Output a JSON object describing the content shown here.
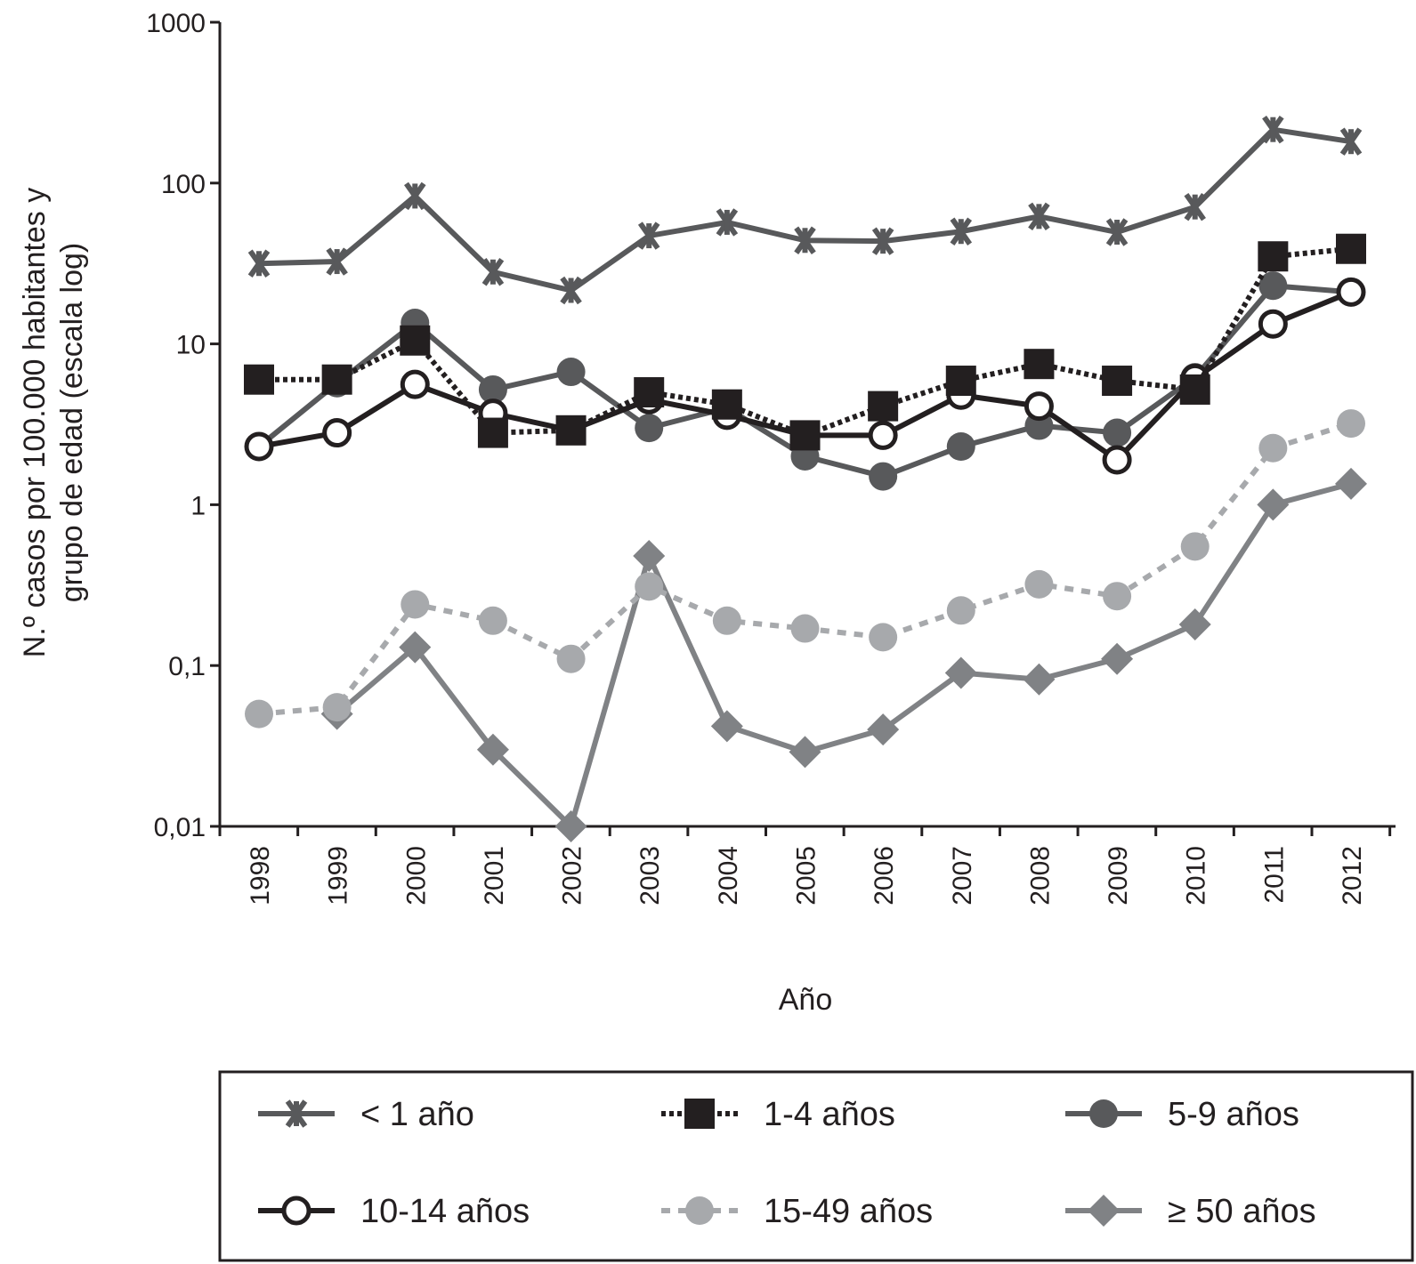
{
  "chart_data": {
    "type": "line",
    "title": "",
    "xlabel": "Año",
    "ylabel_line1": "N.º casos por 100.000 habitantes y",
    "ylabel_line2": "grupo de edad (escala log)",
    "yscale": "log",
    "ylim": [
      0.01,
      1000
    ],
    "yticks": [
      {
        "value": 1000,
        "label": "1000"
      },
      {
        "value": 100,
        "label": "100"
      },
      {
        "value": 10,
        "label": "10"
      },
      {
        "value": 1,
        "label": "1"
      },
      {
        "value": 0.1,
        "label": "0,1"
      },
      {
        "value": 0.01,
        "label": "0,01"
      }
    ],
    "x": [
      "1998",
      "1999",
      "2000",
      "2001",
      "2002",
      "2003",
      "2004",
      "2005",
      "2006",
      "2007",
      "2008",
      "2009",
      "2010",
      "2011",
      "2012"
    ],
    "grid": false,
    "legend_position": "bottom",
    "series": [
      {
        "name": "< 1 año",
        "marker": "asterisk",
        "line": "solid",
        "color": "#58595b",
        "marker_color": "#58595b",
        "values": [
          31.6,
          32.5,
          83,
          28,
          21.5,
          47,
          57,
          44,
          43.5,
          50,
          62,
          49.5,
          71,
          215,
          181
        ]
      },
      {
        "name": "1-4 años",
        "marker": "square",
        "line": "dotted",
        "color": "#231f20",
        "marker_color": "#231f20",
        "values": [
          6,
          6,
          10.5,
          2.8,
          2.9,
          5,
          4.2,
          2.7,
          4.1,
          5.9,
          7.5,
          5.9,
          5.2,
          35,
          39
        ]
      },
      {
        "name": "5-9 años",
        "marker": "circle",
        "line": "solid",
        "color": "#58595b",
        "marker_color": "#58595b",
        "values": [
          2.3,
          5.7,
          13.5,
          5.2,
          6.7,
          3.0,
          4.0,
          2.0,
          1.5,
          2.3,
          3.1,
          2.8,
          6.2,
          23,
          21
        ]
      },
      {
        "name": "10-14 años",
        "marker": "open-circle",
        "line": "solid",
        "color": "#231f20",
        "marker_color": "#ffffff",
        "values": [
          2.3,
          2.8,
          5.6,
          3.7,
          2.9,
          4.5,
          3.6,
          2.7,
          2.7,
          4.8,
          4.1,
          1.9,
          6.1,
          13.3,
          21
        ]
      },
      {
        "name": "15-49 años",
        "marker": "circle",
        "line": "dashed",
        "color": "#a7a9ac",
        "marker_color": "#a7a9ac",
        "values": [
          0.05,
          0.055,
          0.24,
          0.19,
          0.11,
          0.31,
          0.19,
          0.17,
          0.15,
          0.22,
          0.32,
          0.27,
          0.55,
          2.25,
          3.2
        ]
      },
      {
        "name": "≥ 50 años",
        "marker": "diamond",
        "line": "solid",
        "color": "#808285",
        "marker_color": "#808285",
        "values": [
          null,
          0.05,
          0.13,
          0.03,
          0.01,
          0.48,
          0.042,
          0.029,
          0.04,
          0.09,
          0.082,
          0.11,
          0.18,
          1.0,
          1.35
        ]
      }
    ]
  }
}
